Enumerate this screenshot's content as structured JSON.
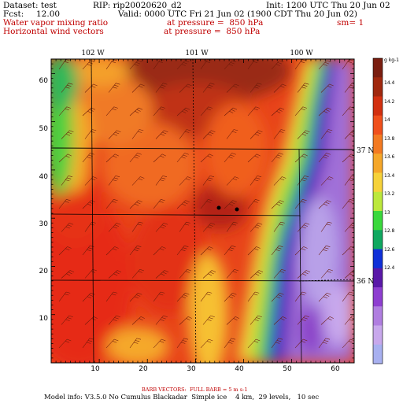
{
  "header": {
    "dataset": "Dataset: test",
    "rip": "RIP: rip20020620_d2",
    "init": "Init: 1200 UTC Thu 20 Jun 02",
    "fcst_label": "Fcst:",
    "fcst_value": "12.00",
    "valid": "Valid: 0000 UTC Fri 21 Jun 02 (1900 CDT Thu 20 Jun 02)",
    "field1_name": "Water vapor mixing ratio",
    "field1_level": "at pressure =  850 hPa",
    "field1_sm": "sm= 1",
    "field2_name": "Horizontal wind vectors",
    "field2_level": "at pressure =  850 hPa"
  },
  "map": {
    "top_lon_labels": [
      "102 W",
      "101 W",
      "100 W"
    ],
    "right_lat_labels": [
      "37 N",
      "36 N"
    ],
    "x_ticks": [
      "10",
      "20",
      "30",
      "40",
      "50",
      "60"
    ],
    "y_ticks": [
      "10",
      "20",
      "30",
      "40",
      "50",
      "60"
    ],
    "colorbar_unit": "g kg-1",
    "colorbar_ticks": [
      "14.4",
      "14.2",
      "14",
      "13.8",
      "13.6",
      "13.4",
      "13.2",
      "13",
      "12.8",
      "12.6",
      "12.4"
    ],
    "colorbar_colors": [
      "#7a1e10",
      "#a0280e",
      "#d23010",
      "#f0501c",
      "#f37a22",
      "#f5a72a",
      "#f6d23a",
      "#bce83c",
      "#3ad83c",
      "#10a860",
      "#1030d8",
      "#5a18a8",
      "#8e3ed0",
      "#b07ee0",
      "#c8a8ec",
      "#a8b0f0"
    ]
  },
  "footer": {
    "barb_label": "BARB VECTORS:  FULL BARB = 5 m s-1",
    "model_info": "Model info: V3.5.0 No Cumulus Blackadar  Simple ice    4 km,  29 levels,   10 sec"
  }
}
